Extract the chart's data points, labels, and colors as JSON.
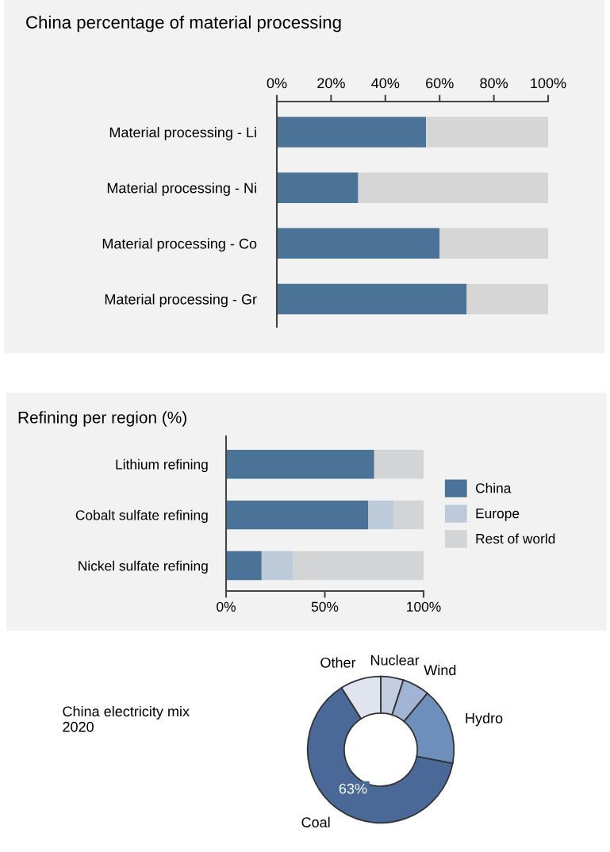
{
  "chart_data": [
    {
      "type": "bar",
      "orientation": "horizontal",
      "stacked": true,
      "title": "China percentage of material processing",
      "categories": [
        "Material processing - Li",
        "Material processing - Ni",
        "Material processing - Co",
        "Material processing - Gr"
      ],
      "series": [
        {
          "color": "#4b7297",
          "values": [
            55,
            30,
            60,
            70
          ]
        },
        {
          "color": "#d6d6d6",
          "values": [
            45,
            70,
            40,
            30
          ]
        }
      ],
      "xlim": [
        0,
        100
      ],
      "xticks": [
        {
          "value": 0,
          "label": "0%"
        },
        {
          "value": 20,
          "label": "20%"
        },
        {
          "value": 40,
          "label": "40%"
        },
        {
          "value": 60,
          "label": "60%"
        },
        {
          "value": 80,
          "label": "80%"
        },
        {
          "value": 100,
          "label": "100%"
        }
      ]
    },
    {
      "type": "bar",
      "orientation": "horizontal",
      "stacked": true,
      "title": "Refining per region (%)",
      "categories": [
        "Lithium refining",
        "Cobalt sulfate refining",
        "Nickel sulfate refining"
      ],
      "series": [
        {
          "name": "China",
          "color": "#4b7297",
          "values": [
            75,
            72,
            18
          ]
        },
        {
          "name": "Europe",
          "color": "#bccad9",
          "values": [
            0,
            13,
            16
          ]
        },
        {
          "name": "Rest of world",
          "color": "#d3d4d6",
          "values": [
            25,
            15,
            66
          ]
        }
      ],
      "xlim": [
        0,
        100
      ],
      "xticks": [
        {
          "value": 0,
          "label": "0%"
        },
        {
          "value": 50,
          "label": "50%"
        },
        {
          "value": 100,
          "label": "100%"
        }
      ],
      "legend": "right"
    },
    {
      "type": "donut",
      "title": "China electricity mix\n2020",
      "categories": [
        "Nuclear",
        "Wind",
        "Hydro",
        "Coal",
        "Other"
      ],
      "values": [
        5,
        6,
        17,
        63,
        9
      ],
      "colors": [
        "#c3cee2",
        "#a1b4d3",
        "#6d8fbb",
        "#4a6898",
        "#dfe4ee"
      ],
      "value_labels": [
        null,
        null,
        null,
        "63%",
        null
      ]
    }
  ]
}
